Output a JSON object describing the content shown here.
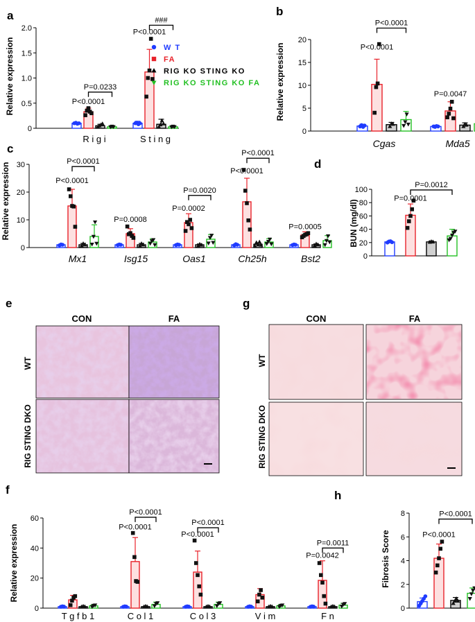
{
  "colors": {
    "WT": "#1f3bff",
    "FA": "#e8222a",
    "RIG KO STING KO": "#000000",
    "RIG KO STING KO FA": "#22c022",
    "fa_fill": "#fde0e0",
    "ko_fill": "#d0d0d0",
    "kofa_fill": "#ffffff",
    "wt_fill": "#ffffff"
  },
  "legend": [
    {
      "label": "W T",
      "group": "WT",
      "marker": "circle"
    },
    {
      "label": "FA",
      "group": "FA",
      "marker": "square"
    },
    {
      "label": "RIG KO STING KO",
      "group": "RIG KO STING KO",
      "marker": "triangle-up"
    },
    {
      "label": "RIG KO STING KO FA",
      "group": "RIG KO STING KO FA",
      "marker": "triangle-down"
    }
  ],
  "chart_data": [
    {
      "panel": "a",
      "type": "bar",
      "ylabel": "Relative expression",
      "ylim": [
        0,
        2.0
      ],
      "yticks": [
        "0",
        "0.5",
        "1.0",
        "1.5",
        "2.0"
      ],
      "ytick_values": [
        0,
        0.5,
        1.0,
        1.5,
        2.0
      ],
      "categories": [
        "Rigi",
        "Sting"
      ],
      "category_labels": [
        "R i g i",
        "S t i n g"
      ],
      "series": [
        {
          "name": "WT",
          "values": [
            0.1,
            0.1
          ],
          "errors": [
            0.02,
            0.04
          ]
        },
        {
          "name": "FA",
          "values": [
            0.33,
            1.12
          ],
          "errors": [
            0.07,
            0.45
          ]
        },
        {
          "name": "RIG KO STING KO",
          "values": [
            0.05,
            0.08
          ],
          "errors": [
            0.03,
            0.1
          ]
        },
        {
          "name": "RIG KO STING KO FA",
          "values": [
            0.03,
            0.03
          ],
          "errors": [
            0.02,
            0.02
          ]
        }
      ],
      "points": [
        [
          [
            0.1,
            0.11,
            0.09,
            0.1
          ],
          [
            0.1,
            0.11,
            0.08,
            0.1
          ]
        ],
        [
          [
            0.26,
            0.35,
            0.4,
            0.33,
            0.3
          ],
          [
            0.63,
            1.0,
            1.15,
            1.78,
            0.98
          ]
        ],
        [
          [
            0.01,
            0.05,
            0.07,
            0.09
          ],
          [
            0.02,
            0.07,
            0.15,
            0.09
          ]
        ],
        [
          [
            0.02,
            0.04,
            0.03
          ],
          [
            0.02,
            0.04,
            0.03
          ]
        ]
      ],
      "annotations": [
        {
          "cat": 0,
          "text": "P<0.0001",
          "y": 0.48
        },
        {
          "cat": 0,
          "text": "P=0.0233",
          "y": 0.72,
          "from": 1,
          "to": 3,
          "bracket": true
        },
        {
          "cat": 1,
          "text": "P<0.0001",
          "y": 1.87
        },
        {
          "cat": 1,
          "text": "###",
          "y": 2.05,
          "from": 1,
          "to": 3,
          "bracket": true
        }
      ]
    },
    {
      "panel": "b",
      "type": "bar",
      "ylabel": "Relative expression",
      "ylim": [
        0,
        20
      ],
      "yticks": [
        "0",
        "5",
        "10",
        "15",
        "20"
      ],
      "ytick_values": [
        0,
        5,
        10,
        15,
        20
      ],
      "categories": [
        "Cgas",
        "Mda5"
      ],
      "category_labels": [
        "Cgas",
        "Mda5"
      ],
      "series": [
        {
          "name": "WT",
          "values": [
            1.1,
            1.0
          ],
          "errors": [
            0.4,
            0.3
          ]
        },
        {
          "name": "FA",
          "values": [
            10.2,
            4.4
          ],
          "errors": [
            5.5,
            2.0
          ]
        },
        {
          "name": "RIG KO STING KO",
          "values": [
            1.4,
            1.3
          ],
          "errors": [
            0.5,
            0.5
          ]
        },
        {
          "name": "RIG KO STING KO FA",
          "values": [
            2.5,
            1.6
          ],
          "errors": [
            1.8,
            1.5
          ]
        }
      ],
      "points": [
        [
          [
            1.0,
            1.3,
            0.9,
            1.2
          ],
          [
            1.0,
            0.9,
            1.1,
            1.0
          ]
        ],
        [
          [
            4.0,
            9.6,
            10.4,
            19.0
          ],
          [
            3.0,
            3.8,
            4.9,
            6.4,
            2.8
          ]
        ],
        [
          [
            1.0,
            1.6,
            1.5
          ],
          [
            1.0,
            1.5,
            1.3
          ]
        ],
        [
          [
            1.2,
            2.0,
            3.7,
            1.5
          ],
          [
            0.9,
            1.6,
            2.6,
            1.3
          ]
        ]
      ],
      "annotations": [
        {
          "cat": 0,
          "text": "P<0.0001",
          "y": 17.8
        },
        {
          "cat": 0,
          "text": "P<0.0001",
          "y": 22.5,
          "from": 1,
          "to": 3,
          "bracket": true
        },
        {
          "cat": 1,
          "text": "P=0.0047",
          "y": 7.6
        }
      ]
    },
    {
      "panel": "c",
      "type": "bar",
      "ylabel": "Relative expression",
      "ylim": [
        0,
        30
      ],
      "yticks": [
        "0",
        "10",
        "20",
        "30"
      ],
      "ytick_values": [
        0,
        10,
        20,
        30
      ],
      "categories": [
        "Mx1",
        "Isg15",
        "Oas1",
        "Ch25h",
        "Bst2"
      ],
      "category_labels": [
        "Mx1",
        "Isg15",
        "Oas1",
        "Ch25h",
        "Bst2"
      ],
      "series": [
        {
          "name": "WT",
          "values": [
            1.0,
            1.0,
            1.0,
            1.0,
            1.0
          ],
          "errors": [
            0.2,
            0.2,
            0.2,
            0.2,
            0.2
          ]
        },
        {
          "name": "FA",
          "values": [
            15.0,
            5.0,
            9.0,
            16.5,
            4.5
          ],
          "errors": [
            6.0,
            1.8,
            3.2,
            8.5,
            1.2
          ]
        },
        {
          "name": "RIG KO STING KO",
          "values": [
            1.0,
            1.0,
            1.0,
            1.2,
            1.0
          ],
          "errors": [
            0.5,
            0.5,
            0.3,
            0.5,
            0.3
          ]
        },
        {
          "name": "RIG KO STING KO FA",
          "values": [
            4.0,
            2.0,
            3.0,
            2.0,
            2.5
          ],
          "errors": [
            4.2,
            1.2,
            1.7,
            1.2,
            1.8
          ]
        }
      ],
      "points": [
        [
          [
            0.8,
            1.1,
            1.0
          ],
          [
            0.9,
            1.1,
            1.0
          ],
          [
            0.9,
            1.1,
            1.0
          ],
          [
            0.8,
            1.2,
            1.0
          ],
          [
            0.9,
            1.1,
            1.0
          ]
        ],
        [
          [
            21.0,
            18.5,
            15.0,
            14.8,
            7.5
          ],
          [
            7.6,
            4.8,
            5.2,
            4.2,
            3.5
          ],
          [
            6.0,
            9.2,
            8.4,
            10.0,
            7.0
          ],
          [
            28.0,
            20.5,
            16.0,
            9.8,
            6.5
          ],
          [
            3.7,
            4.2,
            4.6,
            4.8,
            5.2
          ]
        ],
        [
          [
            0.6,
            1.4,
            1.0
          ],
          [
            0.6,
            1.4,
            1.0
          ],
          [
            0.6,
            1.2,
            0.9
          ],
          [
            0.5,
            1.8,
            1.0,
            2.0,
            0.9
          ],
          [
            0.7,
            1.3,
            1.0
          ]
        ],
        [
          [
            1.2,
            4.0,
            9.2,
            1.5
          ],
          [
            1.5,
            2.4,
            2.8,
            1.0
          ],
          [
            1.6,
            3.6,
            4.4,
            1.8
          ],
          [
            1.4,
            2.2,
            3.0,
            1.3
          ],
          [
            1.0,
            2.5,
            4.2,
            2.0
          ]
        ]
      ],
      "annotations": [
        {
          "cat": 0,
          "text": "P<0.0001",
          "y": 23.3
        },
        {
          "cat": 0,
          "text": "P<0.0001",
          "y": 29.2,
          "from": 1,
          "to": 3,
          "bracket": true
        },
        {
          "cat": 1,
          "text": "P=0.0008",
          "y": 9.2
        },
        {
          "cat": 2,
          "text": "P=0.0002",
          "y": 13.2
        },
        {
          "cat": 2,
          "text": "P=0.0020",
          "y": 18.8,
          "from": 1,
          "to": 3,
          "bracket": true
        },
        {
          "cat": 3,
          "text": "P<0.0001",
          "y": 26.8
        },
        {
          "cat": 3,
          "text": "P<0.0001",
          "y": 32.2,
          "from": 1,
          "to": 3,
          "bracket": true
        },
        {
          "cat": 4,
          "text": "P=0.0005",
          "y": 6.6
        }
      ]
    },
    {
      "panel": "d",
      "type": "bar",
      "ylabel": "BUN (mg/dl)",
      "ylim": [
        0,
        100
      ],
      "yticks": [
        "0",
        "20",
        "40",
        "60",
        "80",
        "100"
      ],
      "ytick_values": [
        0,
        20,
        40,
        60,
        80,
        100
      ],
      "categories": [
        ""
      ],
      "category_labels": [
        ""
      ],
      "series": [
        {
          "name": "WT",
          "values": [
            21.0
          ],
          "errors": [
            1.5
          ]
        },
        {
          "name": "FA",
          "values": [
            61.0
          ],
          "errors": [
            17.0
          ]
        },
        {
          "name": "RIG KO STING KO",
          "values": [
            21.0
          ],
          "errors": [
            1.2
          ]
        },
        {
          "name": "RIG KO STING KO FA",
          "values": [
            30.0
          ],
          "errors": [
            10.0
          ]
        }
      ],
      "points": [
        [
          [
            20.0,
            21.5,
            22.0,
            20.5
          ]
        ],
        [
          [
            42.0,
            52.0,
            60.0,
            70.0,
            83.0
          ]
        ],
        [
          [
            20.5,
            21.5,
            21.0
          ]
        ],
        [
          [
            24.0,
            26.0,
            31.0,
            35.0,
            37.0
          ]
        ]
      ],
      "annotations": [
        {
          "cat": 0,
          "text": "P=0.0001",
          "y": 83.0,
          "at": 1
        },
        {
          "cat": 0,
          "text": "P=0.0012",
          "y": 99.0,
          "from": 1,
          "to": 3,
          "bracket": true
        }
      ]
    },
    {
      "panel": "f",
      "type": "bar",
      "ylabel": "Relative expression",
      "ylim": [
        0,
        60
      ],
      "yticks": [
        "0",
        "20",
        "40",
        "60"
      ],
      "ytick_values": [
        0,
        20,
        40,
        60
      ],
      "categories": [
        "Tgfb1",
        "Col1",
        "Col3",
        "Vim",
        "Fn"
      ],
      "category_labels": [
        "T g f b 1",
        "C o l 1",
        "C o l 3",
        "V i m",
        "F n"
      ],
      "series": [
        {
          "name": "WT",
          "values": [
            1.0,
            1.0,
            1.0,
            1.0,
            1.0
          ],
          "errors": [
            0.2,
            0.2,
            0.2,
            0.2,
            0.2
          ]
        },
        {
          "name": "FA",
          "values": [
            5.5,
            31.0,
            24.0,
            9.0,
            18.5
          ],
          "errors": [
            3.0,
            16.0,
            14.0,
            4.0,
            13.0
          ]
        },
        {
          "name": "RIG KO STING KO",
          "values": [
            1.0,
            1.0,
            1.0,
            1.0,
            1.0
          ],
          "errors": [
            0.3,
            0.3,
            0.3,
            0.3,
            0.3
          ]
        },
        {
          "name": "RIG KO STING KO FA",
          "values": [
            1.5,
            2.5,
            2.5,
            1.5,
            2.0
          ],
          "errors": [
            0.8,
            1.5,
            1.5,
            0.8,
            1.2
          ]
        }
      ],
      "points": [
        [
          [
            0.8,
            1.2,
            1.0
          ],
          [
            0.8,
            1.2,
            1.0
          ],
          [
            0.8,
            1.2,
            1.0
          ],
          [
            0.8,
            1.2,
            1.0
          ],
          [
            0.8,
            1.2,
            1.0
          ]
        ],
        [
          [
            2.0,
            5.0,
            7.0,
            8.0
          ],
          [
            50.0,
            34.0,
            18.0,
            17.5
          ],
          [
            45.0,
            30.0,
            22.0,
            14.5,
            9.0
          ],
          [
            4.5,
            9.0,
            12.0,
            7.0
          ],
          [
            30.0,
            22.0,
            17.0,
            8.0,
            3.0
          ]
        ],
        [
          [
            0.7,
            1.3,
            1.0
          ],
          [
            0.7,
            1.3,
            1.0
          ],
          [
            0.7,
            1.3,
            1.0
          ],
          [
            0.7,
            1.3,
            1.0
          ],
          [
            0.7,
            1.3,
            1.0
          ]
        ],
        [
          [
            1.0,
            1.8,
            2.0
          ],
          [
            1.5,
            3.0,
            3.5
          ],
          [
            1.5,
            3.0,
            3.5
          ],
          [
            1.0,
            1.8,
            2.0
          ],
          [
            1.2,
            2.5,
            3.0
          ]
        ]
      ],
      "annotations": [
        {
          "cat": 1,
          "text": "P<0.0001",
          "y": 52.5
        },
        {
          "cat": 1,
          "text": "P<0.0001",
          "y": 60.5,
          "from": 1,
          "to": 3,
          "bracket": true
        },
        {
          "cat": 2,
          "text": "P<0.0001",
          "y": 47.5
        },
        {
          "cat": 2,
          "text": "P<0.0001",
          "y": 53.5,
          "from": 1,
          "to": 3,
          "bracket": true
        },
        {
          "cat": 4,
          "text": "P=0.0042",
          "y": 33.5
        },
        {
          "cat": 4,
          "text": "P=0.0011",
          "y": 40.0,
          "from": 1,
          "to": 3,
          "bracket": true
        }
      ]
    },
    {
      "panel": "h",
      "type": "bar",
      "ylabel": "Fibrosis Score",
      "ylim": [
        0,
        8
      ],
      "yticks": [
        "0",
        "2",
        "4",
        "6",
        "8"
      ],
      "ytick_values": [
        0,
        2,
        4,
        6,
        8
      ],
      "categories": [
        ""
      ],
      "category_labels": [
        ""
      ],
      "series": [
        {
          "name": "WT",
          "values": [
            0.55
          ],
          "errors": [
            0.3
          ]
        },
        {
          "name": "FA",
          "values": [
            4.2
          ],
          "errors": [
            1.2
          ]
        },
        {
          "name": "RIG KO STING KO",
          "values": [
            0.65
          ],
          "errors": [
            0.25
          ]
        },
        {
          "name": "RIG KO STING KO FA",
          "values": [
            1.25
          ],
          "errors": [
            0.45
          ]
        }
      ],
      "points": [
        [
          [
            0.2,
            0.4,
            0.6,
            0.8,
            1.0
          ]
        ],
        [
          [
            3.0,
            3.6,
            4.2,
            5.0,
            5.6
          ]
        ],
        [
          [
            0.4,
            0.6,
            0.8,
            0.6
          ]
        ],
        [
          [
            0.8,
            1.2,
            1.5,
            1.7
          ]
        ]
      ],
      "annotations": [
        {
          "cat": 0,
          "text": "P<0.0001",
          "y": 6.0,
          "at": 1
        },
        {
          "cat": 0,
          "text": "P<0.0001",
          "y": 7.5,
          "from": 1,
          "to": 3,
          "bracket": true
        }
      ]
    }
  ],
  "histology": {
    "e": {
      "label": "e",
      "columns": [
        "CON",
        "FA"
      ],
      "rows": [
        "WT",
        "RIG STING DKO"
      ]
    },
    "g": {
      "label": "g",
      "columns": [
        "CON",
        "FA"
      ],
      "rows": [
        "WT",
        "RIG STING DKO"
      ]
    }
  }
}
